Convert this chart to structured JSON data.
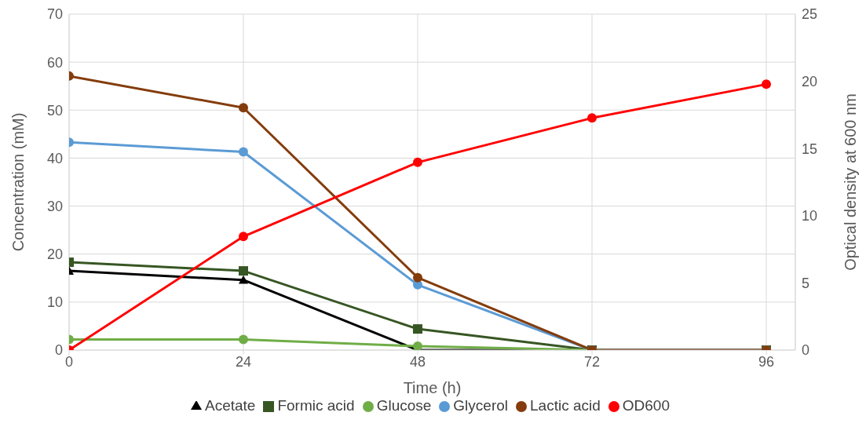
{
  "chart_data": {
    "type": "line",
    "xlabel": "Time (h)",
    "ylabel": "Concentration (mM)",
    "y2label": "Optical density at 600 nm",
    "x": [
      0,
      24,
      48,
      72,
      96
    ],
    "series": [
      {
        "name": "Acetate",
        "color": "#000000",
        "marker": "triangle",
        "values": [
          16.5,
          14.6,
          0,
          0,
          0
        ]
      },
      {
        "name": "Formic acid",
        "color": "#375623",
        "marker": "square",
        "values": [
          18.3,
          16.5,
          4.4,
          0,
          0
        ]
      },
      {
        "name": "Glucose",
        "color": "#70ad47",
        "marker": "circle",
        "values": [
          2.2,
          2.2,
          0.8,
          0,
          0
        ]
      },
      {
        "name": "Glycerol",
        "color": "#5b9bd5",
        "marker": "circle",
        "values": [
          43.3,
          41.3,
          13.6,
          0,
          0
        ]
      },
      {
        "name": "Lactic acid",
        "color": "#843c0c",
        "marker": "circle",
        "values": [
          57.1,
          50.5,
          15.1,
          0,
          0
        ]
      },
      {
        "name": "OD600",
        "color": "#ff0000",
        "marker": "circle",
        "axis": "y2",
        "values": [
          0,
          8.45,
          13.97,
          17.27,
          19.78
        ]
      }
    ],
    "xlim": [
      0,
      100
    ],
    "xticks": [
      0,
      24,
      48,
      72,
      96
    ],
    "ylim": [
      0,
      70
    ],
    "yticks": [
      0,
      10,
      20,
      30,
      40,
      50,
      60,
      70
    ],
    "y2lim": [
      0,
      25
    ],
    "y2ticks": [
      0,
      5,
      10,
      15,
      20,
      25
    ],
    "grid": true,
    "legend": "bottom"
  }
}
